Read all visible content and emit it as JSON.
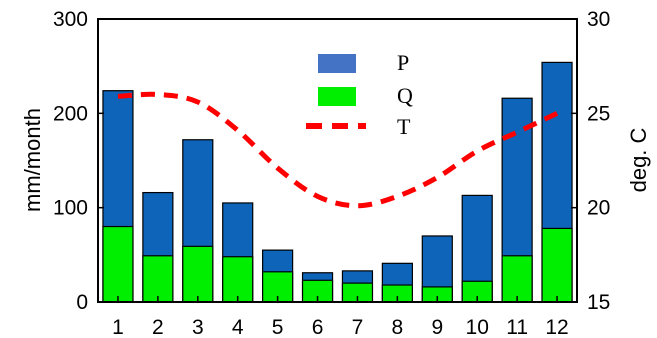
{
  "chart_data": {
    "type": "bar",
    "categories": [
      "1",
      "2",
      "3",
      "4",
      "5",
      "6",
      "7",
      "8",
      "9",
      "10",
      "11",
      "12"
    ],
    "series": [
      {
        "name": "P",
        "kind": "bar",
        "axis": "left",
        "color": "#0e64b9",
        "values": [
          224,
          116,
          172,
          105,
          55,
          31,
          33,
          41,
          70,
          113,
          216,
          254
        ]
      },
      {
        "name": "Q",
        "kind": "bar",
        "axis": "left",
        "color": "#00ee00",
        "values": [
          80,
          49,
          59,
          48,
          32,
          23,
          20,
          18,
          16,
          22,
          49,
          78
        ]
      },
      {
        "name": "T",
        "kind": "line",
        "axis": "right",
        "color": "#ff0000",
        "style": "dashed",
        "values": [
          25.9,
          26.0,
          25.6,
          24.1,
          22.1,
          20.6,
          20.1,
          20.6,
          21.6,
          23.0,
          24.0,
          25.0
        ]
      }
    ],
    "left_axis": {
      "label": "mm/month",
      "ylim": [
        0,
        300
      ],
      "ticks": [
        0,
        100,
        200,
        300
      ]
    },
    "right_axis": {
      "label": "deg. C",
      "ylim": [
        15,
        30
      ],
      "ticks": [
        15,
        20,
        25,
        30
      ]
    },
    "x_ticks": [
      "1",
      "2",
      "3",
      "4",
      "5",
      "6",
      "7",
      "8",
      "9",
      "10",
      "11",
      "12"
    ],
    "legend": {
      "placement": "top-center",
      "entries": [
        "P",
        "Q",
        "T"
      ]
    },
    "grid": false
  }
}
